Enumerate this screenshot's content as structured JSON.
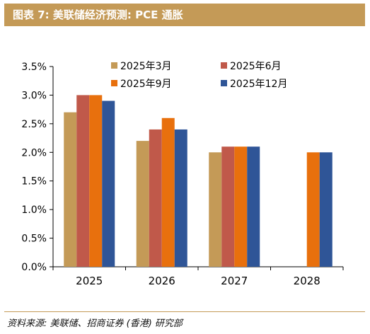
{
  "figure": {
    "title": "图表 7:  美联储经济预测: PCE 通胀",
    "source": "资料来源: 美联储、招商证券 (香港) 研究部"
  },
  "chart_data": {
    "type": "bar",
    "categories": [
      "2025",
      "2026",
      "2027",
      "2028"
    ],
    "series": [
      {
        "name": "2025年3月",
        "color": "#c49a57",
        "values": [
          2.7,
          2.2,
          2.0,
          null
        ]
      },
      {
        "name": "2025年6月",
        "color": "#c0594a",
        "values": [
          3.0,
          2.4,
          2.1,
          null
        ]
      },
      {
        "name": "2025年9月",
        "color": "#e8700d",
        "values": [
          3.0,
          2.6,
          2.1,
          2.0
        ]
      },
      {
        "name": "2025年12月",
        "color": "#2f5597",
        "values": [
          2.9,
          2.4,
          2.1,
          2.0
        ]
      }
    ],
    "y_ticks": [
      "0.0%",
      "0.5%",
      "1.0%",
      "1.5%",
      "2.0%",
      "2.5%",
      "3.0%",
      "3.5%"
    ],
    "ylim": [
      0,
      3.5
    ],
    "grid": false,
    "legend_position": "top-right"
  }
}
